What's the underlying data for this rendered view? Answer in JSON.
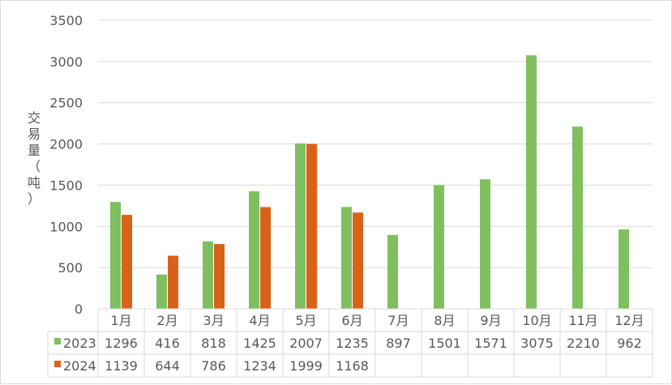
{
  "chart_data": {
    "type": "bar",
    "categories": [
      "1月",
      "2月",
      "3月",
      "4月",
      "5月",
      "6月",
      "7月",
      "8月",
      "9月",
      "10月",
      "11月",
      "12月"
    ],
    "series": [
      {
        "name": "2023",
        "color": "#7fbf5f",
        "values": [
          1296,
          416,
          818,
          1425,
          2007,
          1235,
          897,
          1501,
          1571,
          3075,
          2210,
          962
        ]
      },
      {
        "name": "2024",
        "color": "#d9621a",
        "values": [
          1139,
          644,
          786,
          1234,
          1999,
          1168,
          null,
          null,
          null,
          null,
          null,
          null
        ]
      }
    ],
    "ylabel": "交易量（吨）",
    "ylim": [
      0,
      3500
    ],
    "yticks": [
      0,
      500,
      1000,
      1500,
      2000,
      2500,
      3000,
      3500
    ],
    "grid": true,
    "data_table": true
  }
}
